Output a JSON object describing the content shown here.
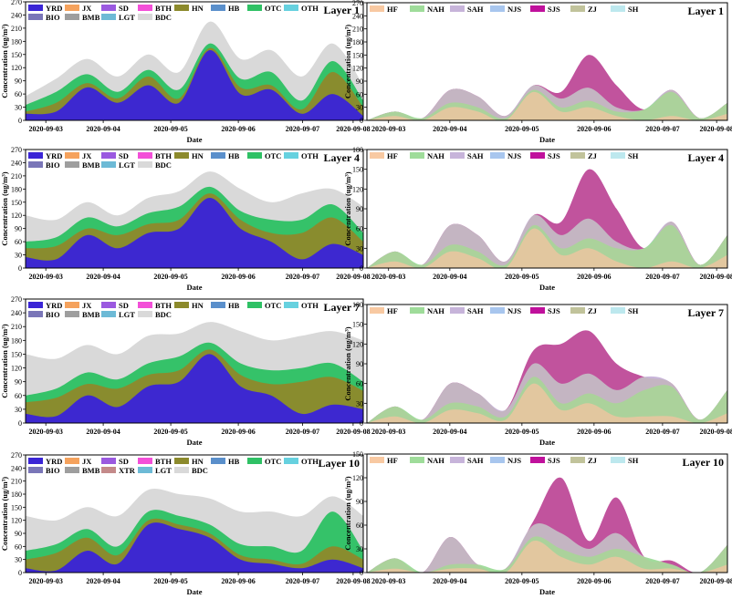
{
  "figure": {
    "axis_labels": {
      "date": "Date",
      "concentration_left": "Concentration (ug/m³)",
      "concentration_right": "Concentration (ug/m³)"
    }
  },
  "chart_data": [
    {
      "type": "area",
      "title": "Layer 1",
      "xlabel": "Date",
      "ylabel": "Concentration (ug/m³)",
      "ylim": [
        0,
        270
      ],
      "yticks": [
        0,
        30,
        60,
        90,
        120,
        150,
        180,
        210,
        240,
        270
      ],
      "x_ticks": [
        "2020-09-03",
        "2020-09-04",
        "2020-09-05",
        "2020-09-06",
        "2020-09-07",
        "2020-09-08"
      ],
      "legend": [
        "YRD",
        "JX",
        "SD",
        "BTH",
        "HN",
        "HB",
        "OTC",
        "OTH",
        "BIO",
        "BMB",
        "LGT",
        "BDC"
      ],
      "legend_position": "top-left",
      "colors": {
        "YRD": "#3b25d6",
        "JX": "#f5a25d",
        "SD": "#9b59e0",
        "BTH": "#f34fd8",
        "HN": "#8c8a2c",
        "HB": "#5a8fcb",
        "OTC": "#2fc165",
        "OTH": "#66d1df",
        "BIO": "#7a76b8",
        "BMB": "#9e9e9e",
        "LGT": "#6dbad6",
        "BDC": "#d9d9d9"
      },
      "stack_order": [
        "YRD",
        "JX",
        "SD",
        "BTH",
        "HN",
        "HB",
        "OTC",
        "OTH",
        "BIO",
        "BMB",
        "LGT",
        "BDC"
      ],
      "stack_top": [
        55,
        95,
        140,
        100,
        150,
        110,
        225,
        140,
        160,
        100,
        175,
        80
      ],
      "series": [
        {
          "name": "YRD",
          "values": [
            15,
            20,
            75,
            40,
            80,
            40,
            160,
            60,
            70,
            15,
            60,
            10
          ]
        },
        {
          "name": "HN",
          "values": [
            5,
            20,
            10,
            10,
            20,
            10,
            5,
            15,
            10,
            10,
            50,
            20
          ]
        },
        {
          "name": "OTC",
          "values": [
            15,
            25,
            20,
            15,
            15,
            20,
            10,
            20,
            30,
            20,
            25,
            15
          ]
        },
        {
          "name": "BDC",
          "values": [
            20,
            30,
            35,
            35,
            35,
            40,
            50,
            45,
            50,
            55,
            40,
            35
          ]
        }
      ]
    },
    {
      "type": "area",
      "title": "Layer 1",
      "xlabel": "Date",
      "ylabel": "Concentration (ug/m³)",
      "ylim": [
        0,
        270
      ],
      "yticks": [
        0,
        30,
        60,
        90,
        120,
        150,
        180,
        210,
        240,
        270
      ],
      "x_ticks": [
        "2020-09-03",
        "2020-09-04",
        "2020-09-05",
        "2020-09-06",
        "2020-09-07",
        "2020-09-08"
      ],
      "legend": [
        "HF",
        "NAH",
        "SAH",
        "NJS",
        "SJS",
        "ZJ",
        "SH"
      ],
      "legend_position": "top-left",
      "colors": {
        "HF": "#f8c9a2",
        "NAH": "#9fdc9a",
        "SAH": "#c7b4da",
        "NJS": "#a8c6ee",
        "SJS": "#c0119c",
        "ZJ": "#c1c39b",
        "SH": "#bde8ee"
      },
      "stack_order": [
        "HF",
        "NAH",
        "SAH",
        "NJS",
        "SJS",
        "ZJ",
        "SH"
      ],
      "stack_top": [
        0,
        20,
        5,
        70,
        55,
        10,
        80,
        65,
        150,
        80,
        25,
        70,
        5,
        40
      ],
      "series": [
        {
          "name": "HF",
          "values": [
            0,
            10,
            0,
            30,
            20,
            0,
            65,
            20,
            30,
            10,
            0,
            10,
            0,
            15
          ]
        },
        {
          "name": "NAH",
          "values": [
            0,
            10,
            5,
            10,
            10,
            5,
            5,
            10,
            15,
            10,
            25,
            55,
            5,
            25
          ]
        },
        {
          "name": "SAH",
          "values": [
            0,
            0,
            0,
            30,
            25,
            5,
            10,
            20,
            30,
            10,
            0,
            5,
            0,
            0
          ]
        },
        {
          "name": "SJS",
          "values": [
            0,
            0,
            0,
            0,
            0,
            0,
            0,
            15,
            75,
            50,
            0,
            0,
            0,
            0
          ]
        }
      ]
    },
    {
      "type": "area",
      "title": "Layer 4",
      "xlabel": "Date",
      "ylabel": "Concentration (ug/m³)",
      "ylim": [
        0,
        270
      ],
      "yticks": [
        0,
        30,
        60,
        90,
        120,
        150,
        180,
        210,
        240,
        270
      ],
      "x_ticks": [
        "2020-09-03",
        "2020-09-04",
        "2020-09-05",
        "2020-09-06",
        "2020-09-07",
        "2020-09-08"
      ],
      "legend": [
        "YRD",
        "JX",
        "SD",
        "BTH",
        "HN",
        "HB",
        "OTC",
        "OTH",
        "BIO",
        "BMB",
        "LGT",
        "BDC"
      ],
      "legend_position": "top-left",
      "colors": {
        "YRD": "#3b25d6",
        "JX": "#f5a25d",
        "SD": "#9b59e0",
        "BTH": "#f34fd8",
        "HN": "#8c8a2c",
        "HB": "#5a8fcb",
        "OTC": "#2fc165",
        "OTH": "#66d1df",
        "BIO": "#7a76b8",
        "BMB": "#9e9e9e",
        "LGT": "#6dbad6",
        "BDC": "#d9d9d9"
      },
      "stack_order": [
        "YRD",
        "JX",
        "SD",
        "BTH",
        "HN",
        "HB",
        "OTC",
        "OTH",
        "BIO",
        "BMB",
        "LGT",
        "BDC"
      ],
      "stack_top": [
        120,
        110,
        150,
        120,
        160,
        175,
        220,
        180,
        150,
        170,
        180,
        140
      ],
      "series": [
        {
          "name": "YRD",
          "values": [
            25,
            20,
            75,
            45,
            80,
            90,
            160,
            90,
            60,
            20,
            55,
            30
          ]
        },
        {
          "name": "HN",
          "values": [
            20,
            30,
            15,
            30,
            20,
            20,
            10,
            20,
            20,
            60,
            60,
            30
          ]
        },
        {
          "name": "OTC",
          "values": [
            15,
            20,
            25,
            20,
            25,
            30,
            15,
            20,
            30,
            30,
            30,
            20
          ]
        },
        {
          "name": "BDC",
          "values": [
            60,
            40,
            35,
            25,
            35,
            35,
            35,
            50,
            40,
            60,
            35,
            60
          ]
        }
      ]
    },
    {
      "type": "area",
      "title": "Layer 4",
      "xlabel": "Date",
      "ylabel": "Concentration (ug/m³)",
      "ylim": [
        0,
        180
      ],
      "yticks": [
        0,
        30,
        60,
        90,
        120,
        150,
        180
      ],
      "x_ticks": [
        "2020-09-03",
        "2020-09-04",
        "2020-09-05",
        "2020-09-06",
        "2020-09-07",
        "2020-09-08"
      ],
      "legend": [
        "HF",
        "NAH",
        "SAH",
        "NJS",
        "SJS",
        "ZJ",
        "SH"
      ],
      "legend_position": "top-left",
      "colors": {
        "HF": "#f8c9a2",
        "NAH": "#9fdc9a",
        "SAH": "#c7b4da",
        "NJS": "#a8c6ee",
        "SJS": "#c0119c",
        "ZJ": "#c1c39b",
        "SH": "#bde8ee"
      },
      "stack_order": [
        "HF",
        "NAH",
        "SAH",
        "NJS",
        "SJS",
        "ZJ",
        "SH"
      ],
      "stack_top": [
        0,
        25,
        5,
        65,
        50,
        10,
        80,
        70,
        150,
        90,
        30,
        70,
        5,
        50
      ],
      "series": [
        {
          "name": "HF",
          "values": [
            0,
            10,
            0,
            25,
            15,
            0,
            60,
            20,
            30,
            10,
            0,
            10,
            0,
            20
          ]
        },
        {
          "name": "NAH",
          "values": [
            0,
            15,
            5,
            10,
            10,
            5,
            5,
            10,
            15,
            20,
            30,
            55,
            5,
            30
          ]
        },
        {
          "name": "SAH",
          "values": [
            0,
            0,
            0,
            30,
            25,
            5,
            15,
            20,
            30,
            10,
            0,
            5,
            0,
            0
          ]
        },
        {
          "name": "SJS",
          "values": [
            0,
            0,
            0,
            0,
            0,
            0,
            0,
            20,
            75,
            50,
            0,
            0,
            0,
            0
          ]
        }
      ]
    },
    {
      "type": "area",
      "title": "Layer 7",
      "xlabel": "Date",
      "ylabel": "Concentration (ug/m³)",
      "ylim": [
        0,
        270
      ],
      "yticks": [
        0,
        30,
        60,
        90,
        120,
        150,
        180,
        210,
        240,
        270
      ],
      "x_ticks": [
        "2020-09-03",
        "2020-09-04",
        "2020-09-05",
        "2020-09-06",
        "2020-09-07",
        "2020-09-08"
      ],
      "legend": [
        "YRD",
        "JX",
        "SD",
        "BTH",
        "HN",
        "HB",
        "OTC",
        "OTH",
        "BIO",
        "BMB",
        "LGT",
        "BDC"
      ],
      "legend_position": "top-left",
      "colors": {
        "YRD": "#3b25d6",
        "JX": "#f5a25d",
        "SD": "#9b59e0",
        "BTH": "#f34fd8",
        "HN": "#8c8a2c",
        "HB": "#5a8fcb",
        "OTC": "#2fc165",
        "OTH": "#66d1df",
        "BIO": "#7a76b8",
        "BMB": "#9e9e9e",
        "LGT": "#6dbad6",
        "BDC": "#d9d9d9"
      },
      "stack_order": [
        "YRD",
        "JX",
        "SD",
        "BTH",
        "HN",
        "HB",
        "OTC",
        "OTH",
        "BIO",
        "BMB",
        "LGT",
        "BDC"
      ],
      "stack_top": [
        150,
        140,
        170,
        150,
        190,
        195,
        220,
        200,
        180,
        190,
        200,
        180
      ],
      "series": [
        {
          "name": "YRD",
          "values": [
            20,
            15,
            60,
            35,
            80,
            90,
            150,
            80,
            60,
            20,
            40,
            30
          ]
        },
        {
          "name": "HN",
          "values": [
            25,
            40,
            25,
            40,
            25,
            25,
            10,
            25,
            25,
            70,
            60,
            40
          ]
        },
        {
          "name": "OTC",
          "values": [
            15,
            20,
            25,
            20,
            25,
            30,
            15,
            25,
            30,
            30,
            30,
            20
          ]
        },
        {
          "name": "BDC",
          "values": [
            90,
            65,
            60,
            55,
            60,
            50,
            45,
            70,
            65,
            70,
            70,
            90
          ]
        }
      ]
    },
    {
      "type": "area",
      "title": "Layer 7",
      "xlabel": "Date",
      "ylabel": "Concentration (ug/m³)",
      "ylim": [
        0,
        180
      ],
      "yticks": [
        0,
        30,
        60,
        90,
        120,
        150,
        180
      ],
      "x_ticks": [
        "2020-09-03",
        "2020-09-04",
        "2020-09-05",
        "2020-09-06",
        "2020-09-07",
        "2020-09-08"
      ],
      "legend": [
        "HF",
        "NAH",
        "SAH",
        "NJS",
        "SJS",
        "ZJ",
        "SH"
      ],
      "legend_position": "top-left",
      "colors": {
        "HF": "#f8c9a2",
        "NAH": "#9fdc9a",
        "SAH": "#c7b4da",
        "NJS": "#a8c6ee",
        "SJS": "#c0119c",
        "ZJ": "#c1c39b",
        "SH": "#bde8ee"
      },
      "stack_order": [
        "HF",
        "NAH",
        "SAH",
        "NJS",
        "SJS",
        "ZJ",
        "SH"
      ],
      "stack_top": [
        0,
        25,
        5,
        60,
        45,
        20,
        110,
        120,
        140,
        90,
        70,
        60,
        5,
        50
      ],
      "series": [
        {
          "name": "HF",
          "values": [
            0,
            10,
            0,
            20,
            15,
            5,
            60,
            20,
            30,
            10,
            10,
            10,
            0,
            15
          ]
        },
        {
          "name": "NAH",
          "values": [
            0,
            15,
            5,
            10,
            10,
            5,
            10,
            10,
            15,
            20,
            40,
            45,
            5,
            35
          ]
        },
        {
          "name": "SAH",
          "values": [
            0,
            0,
            0,
            30,
            20,
            10,
            20,
            30,
            30,
            20,
            20,
            5,
            0,
            0
          ]
        },
        {
          "name": "SJS",
          "values": [
            0,
            0,
            0,
            0,
            0,
            0,
            20,
            60,
            65,
            40,
            0,
            0,
            0,
            0
          ]
        }
      ]
    },
    {
      "type": "area",
      "title": "Layer 10",
      "xlabel": "Date",
      "ylabel": "Concentration (ug/m³)",
      "ylim": [
        0,
        270
      ],
      "yticks": [
        0,
        30,
        60,
        90,
        120,
        150,
        180,
        210,
        240,
        270
      ],
      "x_ticks": [
        "2020-09-03",
        "2020-09-04",
        "2020-09-05",
        "2020-09-06",
        "2020-09-07",
        "2020-09-08"
      ],
      "legend": [
        "YRD",
        "JX",
        "SD",
        "BTH",
        "HN",
        "HB",
        "OTC",
        "OTH",
        "BIO",
        "BMB",
        "XTR",
        "LGT",
        "BDC"
      ],
      "legend_position": "top-left",
      "colors": {
        "YRD": "#3b25d6",
        "JX": "#f5a25d",
        "SD": "#9b59e0",
        "BTH": "#f34fd8",
        "HN": "#8c8a2c",
        "HB": "#5a8fcb",
        "OTC": "#2fc165",
        "OTH": "#66d1df",
        "BIO": "#7a76b8",
        "BMB": "#9e9e9e",
        "XTR": "#c48a8a",
        "LGT": "#6dbad6",
        "BDC": "#d9d9d9"
      },
      "stack_order": [
        "YRD",
        "JX",
        "SD",
        "BTH",
        "HN",
        "HB",
        "OTC",
        "OTH",
        "BIO",
        "BMB",
        "XTR",
        "LGT",
        "BDC"
      ],
      "stack_top": [
        130,
        120,
        150,
        130,
        190,
        180,
        170,
        140,
        140,
        130,
        175,
        130
      ],
      "series": [
        {
          "name": "YRD",
          "values": [
            10,
            5,
            50,
            20,
            110,
            100,
            80,
            30,
            20,
            10,
            30,
            10
          ]
        },
        {
          "name": "HN",
          "values": [
            20,
            40,
            30,
            20,
            10,
            10,
            10,
            10,
            10,
            10,
            30,
            20
          ]
        },
        {
          "name": "OTC",
          "values": [
            20,
            20,
            20,
            20,
            20,
            20,
            20,
            25,
            30,
            30,
            80,
            20
          ]
        },
        {
          "name": "BDC",
          "values": [
            80,
            55,
            50,
            70,
            50,
            50,
            60,
            75,
            80,
            80,
            35,
            80
          ]
        }
      ]
    },
    {
      "type": "area",
      "title": "Layer 10",
      "xlabel": "Date",
      "ylabel": "Concentration (ug/m³)",
      "ylim": [
        0,
        150
      ],
      "yticks": [
        0,
        30,
        60,
        90,
        120,
        150
      ],
      "x_ticks": [
        "2020-09-03",
        "2020-09-04",
        "2020-09-05",
        "2020-09-06",
        "2020-09-07",
        "2020-09-08"
      ],
      "legend": [
        "HF",
        "NAH",
        "SAH",
        "NJS",
        "SJS",
        "ZJ",
        "SH"
      ],
      "legend_position": "top-left",
      "colors": {
        "HF": "#f8c9a2",
        "NAH": "#9fdc9a",
        "SAH": "#c7b4da",
        "NJS": "#a8c6ee",
        "SJS": "#c0119c",
        "ZJ": "#c1c39b",
        "SH": "#bde8ee"
      },
      "stack_order": [
        "HF",
        "NAH",
        "SAH",
        "NJS",
        "SJS",
        "ZJ",
        "SH"
      ],
      "stack_top": [
        0,
        18,
        0,
        45,
        10,
        5,
        65,
        120,
        40,
        95,
        20,
        15,
        0,
        35
      ],
      "series": [
        {
          "name": "HF",
          "values": [
            0,
            5,
            0,
            5,
            5,
            0,
            40,
            20,
            10,
            20,
            5,
            5,
            0,
            10
          ]
        },
        {
          "name": "NAH",
          "values": [
            0,
            13,
            0,
            5,
            5,
            5,
            5,
            10,
            10,
            10,
            15,
            5,
            0,
            25
          ]
        },
        {
          "name": "SAH",
          "values": [
            0,
            0,
            0,
            35,
            0,
            0,
            15,
            20,
            10,
            20,
            0,
            0,
            0,
            0
          ]
        },
        {
          "name": "SJS",
          "values": [
            0,
            0,
            0,
            0,
            0,
            0,
            5,
            70,
            10,
            45,
            0,
            5,
            0,
            0
          ]
        }
      ]
    }
  ]
}
